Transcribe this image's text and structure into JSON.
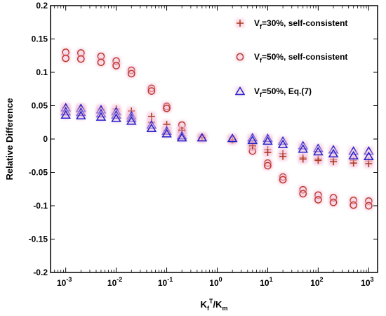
{
  "chart_data": {
    "type": "scatter",
    "title": "",
    "xlabel": {
      "main": "K",
      "sub1": "f",
      "sup": "T",
      "sep": "/K",
      "sub2": "m"
    },
    "ylabel": "Relative Difference",
    "xscale": "log",
    "xlim": [
      0.0005,
      1500
    ],
    "ylim": [
      -0.2,
      0.2
    ],
    "xticks": [
      0.001,
      0.01,
      0.1,
      1,
      10,
      100,
      1000
    ],
    "xtick_labels": [
      {
        "base": "10",
        "exp": "-3"
      },
      {
        "base": "10",
        "exp": "-2"
      },
      {
        "base": "10",
        "exp": "-1"
      },
      {
        "base": "10",
        "exp": "0"
      },
      {
        "base": "10",
        "exp": "1"
      },
      {
        "base": "10",
        "exp": "2"
      },
      {
        "base": "10",
        "exp": "3"
      }
    ],
    "yticks": [
      -0.2,
      -0.15,
      -0.1,
      -0.05,
      0,
      0.05,
      0.1,
      0.15,
      0.2
    ],
    "ytick_labels": [
      "-0.2",
      "-0.15",
      "-0.1",
      "-0.05",
      "0",
      "0.05",
      "0.1",
      "0.15",
      "0.2"
    ],
    "grid": false,
    "legend_position": "top-right",
    "series": [
      {
        "name": "Vf=30%, self-consistent",
        "legend": {
          "main": "V",
          "sub": "f",
          "rest": "=30%, self-consistent"
        },
        "marker": "plus",
        "color": "#b03a1e",
        "points": [
          [
            0.001,
            0.047
          ],
          [
            0.001,
            0.041
          ],
          [
            0.002,
            0.046
          ],
          [
            0.002,
            0.04
          ],
          [
            0.005,
            0.045
          ],
          [
            0.005,
            0.039
          ],
          [
            0.01,
            0.045
          ],
          [
            0.01,
            0.038
          ],
          [
            0.02,
            0.042
          ],
          [
            0.02,
            0.034
          ],
          [
            0.05,
            0.034
          ],
          [
            0.05,
            0.025
          ],
          [
            0.1,
            0.022
          ],
          [
            0.1,
            0.013
          ],
          [
            0.2,
            0.013
          ],
          [
            0.2,
            0.005
          ],
          [
            0.5,
            0.002
          ],
          [
            2,
            -0.001
          ],
          [
            5,
            -0.005
          ],
          [
            5,
            -0.01
          ],
          [
            10,
            -0.016
          ],
          [
            10,
            -0.02
          ],
          [
            20,
            -0.022
          ],
          [
            20,
            -0.026
          ],
          [
            50,
            -0.028
          ],
          [
            50,
            -0.03
          ],
          [
            100,
            -0.03
          ],
          [
            100,
            -0.032
          ],
          [
            200,
            -0.031
          ],
          [
            200,
            -0.034
          ],
          [
            500,
            -0.032
          ],
          [
            500,
            -0.036
          ],
          [
            1000,
            -0.033
          ],
          [
            1000,
            -0.037
          ]
        ]
      },
      {
        "name": "Vf=50%, self-consistent",
        "legend": {
          "main": "V",
          "sub": "f",
          "rest": "=50%, self-consistent"
        },
        "marker": "circle",
        "color": "#c0392b",
        "points": [
          [
            0.001,
            0.13
          ],
          [
            0.001,
            0.121
          ],
          [
            0.002,
            0.129
          ],
          [
            0.002,
            0.12
          ],
          [
            0.005,
            0.124
          ],
          [
            0.005,
            0.115
          ],
          [
            0.01,
            0.117
          ],
          [
            0.01,
            0.11
          ],
          [
            0.02,
            0.103
          ],
          [
            0.02,
            0.098
          ],
          [
            0.05,
            0.076
          ],
          [
            0.05,
            0.072
          ],
          [
            0.1,
            0.049
          ],
          [
            0.1,
            0.046
          ],
          [
            0.2,
            0.021
          ],
          [
            0.2,
            0.012
          ],
          [
            0.5,
            0.002
          ],
          [
            2,
            -0.001
          ],
          [
            5,
            -0.012
          ],
          [
            5,
            -0.018
          ],
          [
            10,
            -0.036
          ],
          [
            10,
            -0.04
          ],
          [
            20,
            -0.057
          ],
          [
            20,
            -0.061
          ],
          [
            50,
            -0.076
          ],
          [
            50,
            -0.082
          ],
          [
            100,
            -0.084
          ],
          [
            100,
            -0.091
          ],
          [
            200,
            -0.088
          ],
          [
            200,
            -0.095
          ],
          [
            500,
            -0.092
          ],
          [
            500,
            -0.099
          ],
          [
            1000,
            -0.093
          ],
          [
            1000,
            -0.1
          ]
        ]
      },
      {
        "name": "Vf=50%, Eq.(7)",
        "legend": {
          "main": "V",
          "sub": "f",
          "rest": "=50%, Eq.(7)"
        },
        "marker": "triangle",
        "color": "#2222cc",
        "points": [
          [
            0.001,
            0.047
          ],
          [
            0.001,
            0.041
          ],
          [
            0.001,
            0.036
          ],
          [
            0.002,
            0.046
          ],
          [
            0.002,
            0.04
          ],
          [
            0.002,
            0.035
          ],
          [
            0.005,
            0.044
          ],
          [
            0.005,
            0.038
          ],
          [
            0.005,
            0.033
          ],
          [
            0.01,
            0.041
          ],
          [
            0.01,
            0.036
          ],
          [
            0.01,
            0.031
          ],
          [
            0.02,
            0.035
          ],
          [
            0.02,
            0.031
          ],
          [
            0.02,
            0.027
          ],
          [
            0.05,
            0.021
          ],
          [
            0.05,
            0.016
          ],
          [
            0.1,
            0.012
          ],
          [
            0.1,
            0.008
          ],
          [
            0.2,
            0.005
          ],
          [
            0.2,
            0.002
          ],
          [
            0.5,
            0.002
          ],
          [
            2,
            0.001
          ],
          [
            5,
            0.002
          ],
          [
            5,
            -0.002
          ],
          [
            10,
            0.001
          ],
          [
            10,
            -0.003
          ],
          [
            20,
            -0.003
          ],
          [
            20,
            -0.008
          ],
          [
            50,
            -0.01
          ],
          [
            50,
            -0.015
          ],
          [
            100,
            -0.014
          ],
          [
            100,
            -0.019
          ],
          [
            200,
            -0.016
          ],
          [
            200,
            -0.022
          ],
          [
            500,
            -0.018
          ],
          [
            500,
            -0.025
          ],
          [
            1000,
            -0.018
          ],
          [
            1000,
            -0.026
          ]
        ]
      }
    ]
  }
}
